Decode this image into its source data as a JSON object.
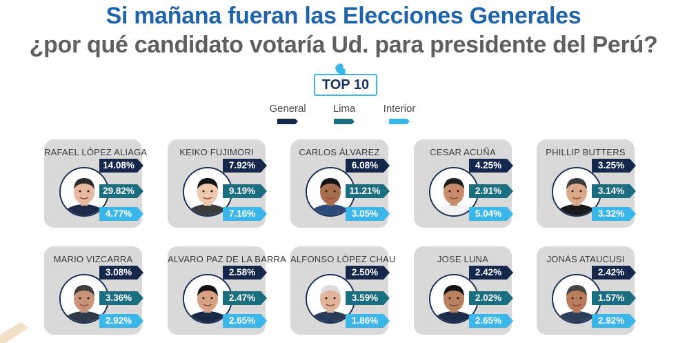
{
  "title": {
    "line1": "Si mañana fueran las Elecciones Generales",
    "line2": "¿por qué candidato votaría Ud. para presidente del Perú?"
  },
  "badge": {
    "label": "TOP 10",
    "icon": "peru-map-icon"
  },
  "legend": [
    {
      "label": "General",
      "color": "#15284c"
    },
    {
      "label": "Lima",
      "color": "#1a6e80"
    },
    {
      "label": "Interior",
      "color": "#3bb6e8"
    }
  ],
  "chart_data": {
    "type": "table",
    "series": [
      {
        "name": "General",
        "values": [
          "14.08%",
          "7.92%",
          "6.08%",
          "4.25%",
          "3.25%",
          "3.08%",
          "2.58%",
          "2.50%",
          "2.42%",
          "2.42%"
        ]
      },
      {
        "name": "Lima",
        "values": [
          "29.82%",
          "9.19%",
          "11.21%",
          "2.91%",
          "3.14%",
          "3.36%",
          "2.47%",
          "3.59%",
          "2.02%",
          "1.57%"
        ]
      },
      {
        "name": "Interior",
        "values": [
          "4.77%",
          "7.16%",
          "3.05%",
          "5.04%",
          "3.32%",
          "2.92%",
          "2.65%",
          "1.86%",
          "2.65%",
          "2.92%"
        ]
      }
    ],
    "categories": [
      "RAFAEL LÓPEZ ALIAGA",
      "KEIKO FUJIMORI",
      "CARLOS ÁLVAREZ",
      "CESAR ACUÑA",
      "PHILLIP BUTTERS",
      "MARIO VIZCARRA",
      "ALVARO PAZ DE LA BARRA",
      "ALFONSO LÓPEZ CHAU",
      "JOSE LUNA",
      "JONÁS ATAUCUSI"
    ]
  },
  "candidates": [
    {
      "name": "RAFAEL LÓPEZ ALIAGA",
      "general": "14.08%",
      "lima": "29.82%",
      "interior": "4.77%",
      "photo_icon": "candidate-photo"
    },
    {
      "name": "KEIKO FUJIMORI",
      "general": "7.92%",
      "lima": "9.19%",
      "interior": "7.16%",
      "photo_icon": "candidate-photo"
    },
    {
      "name": "CARLOS ÁLVAREZ",
      "general": "6.08%",
      "lima": "11.21%",
      "interior": "3.05%",
      "photo_icon": "candidate-photo"
    },
    {
      "name": "CESAR ACUÑA",
      "general": "4.25%",
      "lima": "2.91%",
      "interior": "5.04%",
      "photo_icon": "candidate-photo"
    },
    {
      "name": "PHILLIP BUTTERS",
      "general": "3.25%",
      "lima": "3.14%",
      "interior": "3.32%",
      "photo_icon": "candidate-photo"
    },
    {
      "name": "MARIO VIZCARRA",
      "general": "3.08%",
      "lima": "3.36%",
      "interior": "2.92%",
      "photo_icon": "candidate-photo"
    },
    {
      "name": "ALVARO PAZ DE LA BARRA",
      "general": "2.58%",
      "lima": "2.47%",
      "interior": "2.65%",
      "photo_icon": "candidate-photo"
    },
    {
      "name": "ALFONSO LÓPEZ CHAU",
      "general": "2.50%",
      "lima": "3.59%",
      "interior": "1.86%",
      "photo_icon": "candidate-photo"
    },
    {
      "name": "JOSE LUNA",
      "general": "2.42%",
      "lima": "2.02%",
      "interior": "2.65%",
      "photo_icon": "candidate-photo"
    },
    {
      "name": "JONÁS ATAUCUSI",
      "general": "2.42%",
      "lima": "1.57%",
      "interior": "2.92%",
      "photo_icon": "candidate-photo"
    }
  ],
  "colors": {
    "title_blue": "#1f63a8",
    "title_gray": "#5f5f5f",
    "card_bg": "#d9d9d9",
    "general": "#15284c",
    "lima": "#1a6e80",
    "interior": "#3bb6e8",
    "badge_border": "#3ab6e6"
  }
}
